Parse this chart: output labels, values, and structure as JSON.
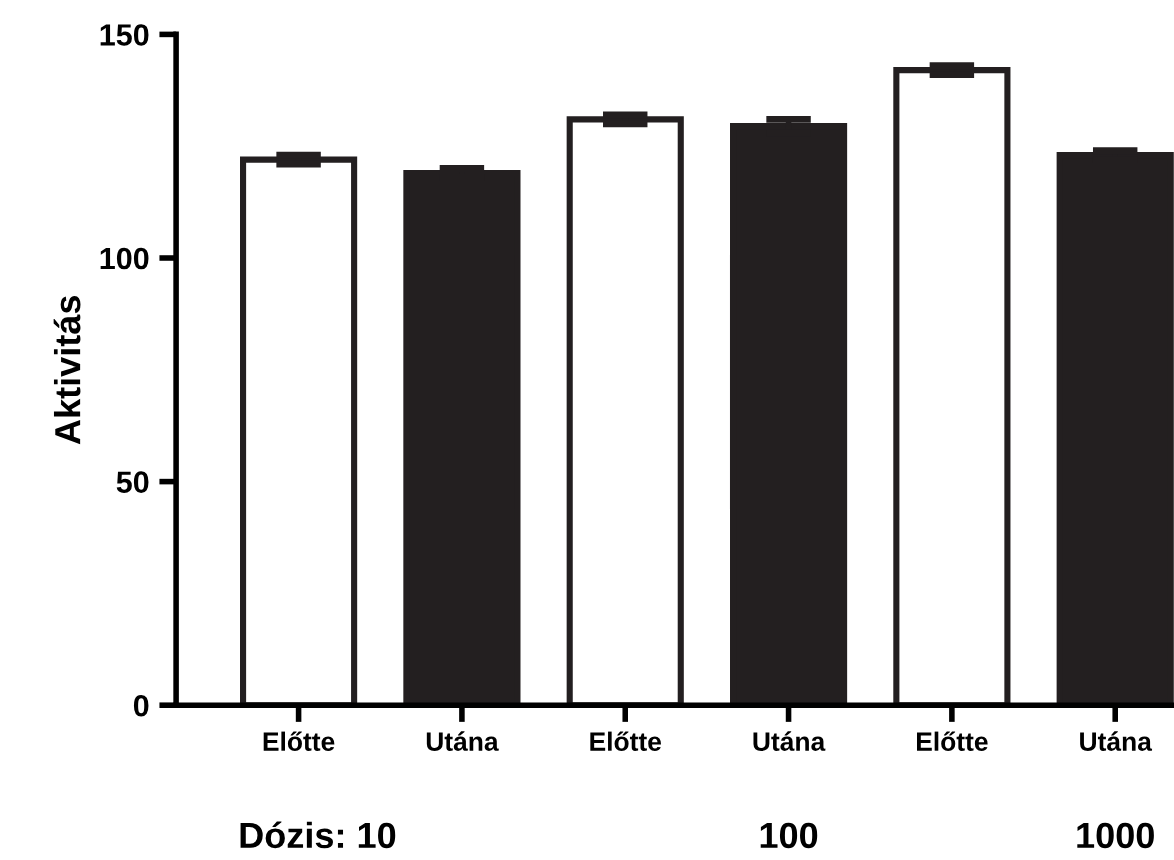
{
  "chart_data": {
    "type": "bar",
    "ylabel": "Aktivitás",
    "categories": [
      "Előtte",
      "Utána",
      "Előtte",
      "Utána",
      "Előtte",
      "Utána"
    ],
    "values": [
      122,
      119,
      131,
      129.5,
      142,
      123
    ],
    "errors": [
      1,
      1,
      1,
      1.5,
      1,
      1
    ],
    "colors": [
      "#ffffff",
      "#231f20",
      "#ffffff",
      "#231f20",
      "#ffffff",
      "#231f20"
    ],
    "ylim": [
      0,
      150
    ],
    "yticks": [
      0,
      50,
      100,
      150
    ],
    "grid": false,
    "legend": false,
    "annotations": [
      "Dózis: 10",
      "100",
      "1000"
    ]
  }
}
